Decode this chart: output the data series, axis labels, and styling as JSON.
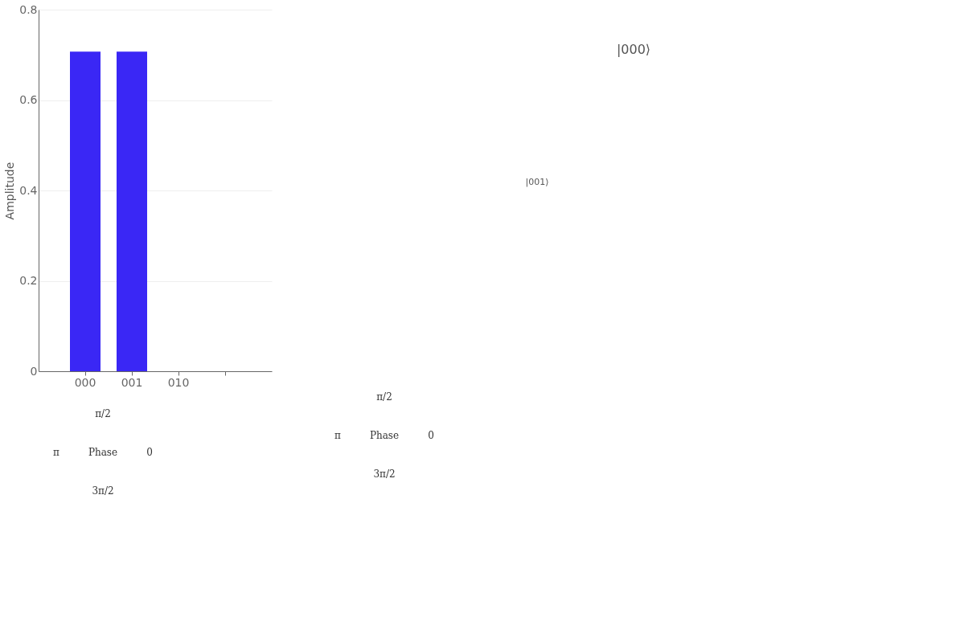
{
  "chart_data": [
    {
      "type": "bar",
      "ylabel": "Amplitude",
      "categories": [
        "000",
        "001",
        "010",
        null
      ],
      "values": [
        0.707,
        0.707,
        0,
        0
      ],
      "color": "#3a27f5",
      "ylim": [
        0,
        0.8
      ],
      "yticks": [
        0,
        0.2,
        0.4,
        0.6,
        0.8
      ],
      "grid": "y",
      "annotations": [
        "π/2",
        "π",
        "Phase",
        "0",
        "3π/2"
      ]
    },
    {
      "type": "other",
      "annotations": [
        "|000⟩",
        "|001⟩",
        "π/2",
        "π",
        "Phase",
        "0",
        "3π/2"
      ]
    }
  ]
}
